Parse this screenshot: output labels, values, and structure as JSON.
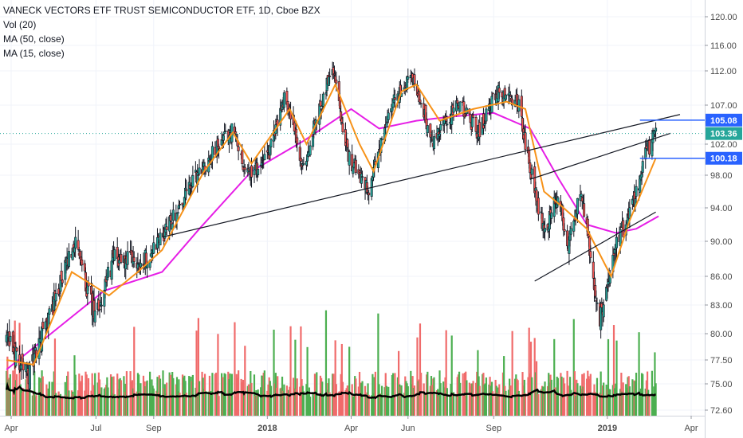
{
  "legend": {
    "title": "VANECK VECTORS ETF TRUST SEMICONDUCTOR ETF, 1D, Cboe BZX",
    "vol": "Vol (20)",
    "ma50": "MA (50, close)",
    "ma15": "MA (15, close)"
  },
  "colors": {
    "up": "#26a69a",
    "down": "#ef5350",
    "candle": "#131722",
    "ma50": "#e61ee6",
    "ma15": "#f7931a",
    "vol_up": "#4caf50",
    "vol_down": "#f06b6b",
    "vol_ma": "#000000",
    "hline": "#2962ff",
    "last_price_tag": "#26a69a",
    "dotted_last": "#26a69a"
  },
  "chart_data": {
    "type": "candlestick",
    "title": "VANECK VECTORS ETF TRUST SEMICONDUCTOR ETF, 1D, Cboe BZX",
    "y_ticks": [
      "120.00",
      "116.00",
      "112.00",
      "107.00",
      "102.00",
      "98.00",
      "94.00",
      "90.00",
      "86.00",
      "83.00",
      "80.00",
      "77.50",
      "75.00",
      "72.60"
    ],
    "x_ticks": [
      "Apr",
      "Jul",
      "Sep",
      "2018",
      "Apr",
      "Jun",
      "Sep",
      "2019",
      "Apr"
    ],
    "price_tags": [
      {
        "label": "105.08",
        "kind": "horizontal-line"
      },
      {
        "label": "103.36",
        "kind": "last-price"
      },
      {
        "label": "100.18",
        "kind": "horizontal-line"
      }
    ],
    "price_path": [
      {
        "date": "2017-03-27",
        "close": 79.5
      },
      {
        "date": "2017-04-20",
        "close": 76.0
      },
      {
        "date": "2017-05-25",
        "close": 85.5
      },
      {
        "date": "2017-06-08",
        "close": 90.0
      },
      {
        "date": "2017-06-30",
        "close": 81.5
      },
      {
        "date": "2017-07-20",
        "close": 88.0
      },
      {
        "date": "2017-08-20",
        "close": 87.5
      },
      {
        "date": "2017-09-10",
        "close": 90.5
      },
      {
        "date": "2017-10-20",
        "close": 98.5
      },
      {
        "date": "2017-11-25",
        "close": 104.0
      },
      {
        "date": "2017-12-10",
        "close": 98.0
      },
      {
        "date": "2018-01-01",
        "close": 100.0
      },
      {
        "date": "2018-01-20",
        "close": 108.5
      },
      {
        "date": "2018-02-08",
        "close": 98.5
      },
      {
        "date": "2018-03-12",
        "close": 113.0
      },
      {
        "date": "2018-03-28",
        "close": 100.5
      },
      {
        "date": "2018-04-20",
        "close": 96.5
      },
      {
        "date": "2018-05-15",
        "close": 107.0
      },
      {
        "date": "2018-06-05",
        "close": 111.5
      },
      {
        "date": "2018-06-28",
        "close": 102.0
      },
      {
        "date": "2018-07-25",
        "close": 107.5
      },
      {
        "date": "2018-08-15",
        "close": 103.5
      },
      {
        "date": "2018-09-05",
        "close": 109.0
      },
      {
        "date": "2018-09-28",
        "close": 107.0
      },
      {
        "date": "2018-10-10",
        "close": 99.0
      },
      {
        "date": "2018-10-25",
        "close": 91.0
      },
      {
        "date": "2018-11-08",
        "close": 95.5
      },
      {
        "date": "2018-11-20",
        "close": 90.0
      },
      {
        "date": "2018-12-03",
        "close": 96.0
      },
      {
        "date": "2018-12-24",
        "close": 81.5
      },
      {
        "date": "2019-01-10",
        "close": 89.5
      },
      {
        "date": "2019-01-28",
        "close": 94.0
      },
      {
        "date": "2019-02-12",
        "close": 101.0
      },
      {
        "date": "2019-02-22",
        "close": 103.4
      }
    ],
    "ma50_path": [
      {
        "date": "2017-03-27",
        "value": 76.5
      },
      {
        "date": "2017-05-20",
        "value": 80.5
      },
      {
        "date": "2017-07-10",
        "value": 84.5
      },
      {
        "date": "2017-09-10",
        "value": 86.5
      },
      {
        "date": "2017-10-20",
        "value": 91.5
      },
      {
        "date": "2017-12-15",
        "value": 98.5
      },
      {
        "date": "2018-02-10",
        "value": 102.5
      },
      {
        "date": "2018-04-01",
        "value": 106.5
      },
      {
        "date": "2018-05-01",
        "value": 104.0
      },
      {
        "date": "2018-06-10",
        "value": 105.0
      },
      {
        "date": "2018-07-15",
        "value": 105.5
      },
      {
        "date": "2018-09-01",
        "value": 106.0
      },
      {
        "date": "2018-10-10",
        "value": 104.0
      },
      {
        "date": "2018-11-10",
        "value": 97.5
      },
      {
        "date": "2018-12-10",
        "value": 92.0
      },
      {
        "date": "2019-01-10",
        "value": 91.0
      },
      {
        "date": "2019-02-01",
        "value": 91.5
      },
      {
        "date": "2019-02-25",
        "value": 93.0
      }
    ],
    "ma15_path": [
      {
        "date": "2017-03-27",
        "value": 77.5
      },
      {
        "date": "2017-04-25",
        "value": 77.0
      },
      {
        "date": "2017-06-05",
        "value": 86.5
      },
      {
        "date": "2017-07-15",
        "value": 84.0
      },
      {
        "date": "2017-08-15",
        "value": 86.5
      },
      {
        "date": "2017-09-10",
        "value": 89.0
      },
      {
        "date": "2017-10-25",
        "value": 98.5
      },
      {
        "date": "2017-11-25",
        "value": 103.5
      },
      {
        "date": "2017-12-15",
        "value": 99.5
      },
      {
        "date": "2018-01-25",
        "value": 106.5
      },
      {
        "date": "2018-02-12",
        "value": 102.0
      },
      {
        "date": "2018-03-15",
        "value": 110.0
      },
      {
        "date": "2018-04-10",
        "value": 102.0
      },
      {
        "date": "2018-04-25",
        "value": 98.5
      },
      {
        "date": "2018-05-25",
        "value": 109.0
      },
      {
        "date": "2018-06-10",
        "value": 110.0
      },
      {
        "date": "2018-07-05",
        "value": 105.0
      },
      {
        "date": "2018-08-10",
        "value": 106.5
      },
      {
        "date": "2018-09-15",
        "value": 107.5
      },
      {
        "date": "2018-10-05",
        "value": 106.5
      },
      {
        "date": "2018-10-25",
        "value": 96.0
      },
      {
        "date": "2018-11-15",
        "value": 94.0
      },
      {
        "date": "2018-12-10",
        "value": 91.5
      },
      {
        "date": "2019-01-05",
        "value": 86.0
      },
      {
        "date": "2019-01-25",
        "value": 92.5
      },
      {
        "date": "2019-02-22",
        "value": 100.2
      }
    ],
    "trendlines": [
      {
        "from": {
          "date": "2017-09-10",
          "value": 90.5
        },
        "to": {
          "date": "2019-03-20",
          "value": 105.8
        }
      },
      {
        "from": {
          "date": "2018-10-10",
          "value": 97.5
        },
        "to": {
          "date": "2019-03-10",
          "value": 103.4
        }
      },
      {
        "from": {
          "date": "2018-10-15",
          "value": 85.5
        },
        "to": {
          "date": "2019-02-22",
          "value": 93.5
        }
      }
    ],
    "horizontal_levels": [
      {
        "value": 105.08,
        "from": "2019-02-05"
      },
      {
        "value": 100.18,
        "from": "2019-02-05"
      }
    ],
    "dotted_last_price": 103.36
  }
}
